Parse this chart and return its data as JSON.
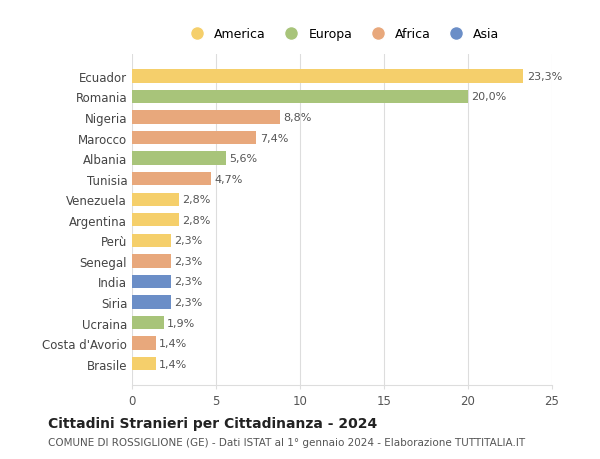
{
  "countries": [
    "Ecuador",
    "Romania",
    "Nigeria",
    "Marocco",
    "Albania",
    "Tunisia",
    "Venezuela",
    "Argentina",
    "Perù",
    "Senegal",
    "India",
    "Siria",
    "Ucraina",
    "Costa d'Avorio",
    "Brasile"
  ],
  "values": [
    23.3,
    20.0,
    8.8,
    7.4,
    5.6,
    4.7,
    2.8,
    2.8,
    2.3,
    2.3,
    2.3,
    2.3,
    1.9,
    1.4,
    1.4
  ],
  "labels": [
    "23,3%",
    "20,0%",
    "8,8%",
    "7,4%",
    "5,6%",
    "4,7%",
    "2,8%",
    "2,8%",
    "2,3%",
    "2,3%",
    "2,3%",
    "2,3%",
    "1,9%",
    "1,4%",
    "1,4%"
  ],
  "colors": [
    "#F5CF6B",
    "#A8C47A",
    "#E8A87C",
    "#E8A87C",
    "#A8C47A",
    "#E8A87C",
    "#F5CF6B",
    "#F5CF6B",
    "#F5CF6B",
    "#E8A87C",
    "#6B8EC7",
    "#6B8EC7",
    "#A8C47A",
    "#E8A87C",
    "#F5CF6B"
  ],
  "legend_labels": [
    "America",
    "Europa",
    "Africa",
    "Asia"
  ],
  "legend_colors": [
    "#F5CF6B",
    "#A8C47A",
    "#E8A87C",
    "#6B8EC7"
  ],
  "title": "Cittadini Stranieri per Cittadinanza - 2024",
  "subtitle": "COMUNE DI ROSSIGLIONE (GE) - Dati ISTAT al 1° gennaio 2024 - Elaborazione TUTTITALIA.IT",
  "xlim": [
    0,
    25
  ],
  "xticks": [
    0,
    5,
    10,
    15,
    20,
    25
  ],
  "background_color": "#ffffff",
  "grid_color": "#dddddd"
}
